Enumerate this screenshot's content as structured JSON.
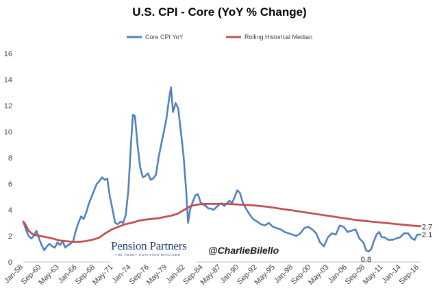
{
  "chart_data": {
    "type": "line",
    "title": "U.S. CPI - Core (YoY % Change)",
    "xlabel": "",
    "ylabel": "",
    "ylim": [
      0,
      16
    ],
    "yticks": [
      0,
      2,
      4,
      6,
      8,
      10,
      12,
      14,
      16
    ],
    "x_range": [
      1958.0,
      2018.5
    ],
    "xtick_labels": [
      "Jan-58",
      "Sep-60",
      "May-63",
      "Jan-66",
      "Sep-68",
      "May-71",
      "Jan-74",
      "Sep-76",
      "May-79",
      "Jan-82",
      "Sep-84",
      "May-87",
      "Jan-90",
      "Sep-92",
      "May-95",
      "Jan-98",
      "Sep-00",
      "May-03",
      "Jan-06",
      "Sep-08",
      "May-11",
      "Jan-14",
      "Sep-16"
    ],
    "legend_position": "top-center",
    "series": [
      {
        "name": "Core CPI YoY",
        "color": "#4f81bd",
        "x": [
          1958.0,
          1958.4,
          1958.8,
          1959.2,
          1959.6,
          1960.0,
          1960.4,
          1960.8,
          1961.2,
          1961.6,
          1962.0,
          1962.4,
          1962.8,
          1963.2,
          1963.6,
          1964.0,
          1964.4,
          1964.8,
          1965.2,
          1965.6,
          1966.0,
          1966.4,
          1966.8,
          1967.2,
          1967.6,
          1968.0,
          1968.4,
          1968.8,
          1969.2,
          1969.6,
          1970.0,
          1970.4,
          1970.8,
          1971.2,
          1971.6,
          1972.0,
          1972.4,
          1972.8,
          1973.2,
          1973.6,
          1974.0,
          1974.4,
          1974.7,
          1975.0,
          1975.4,
          1975.8,
          1976.2,
          1976.6,
          1977.0,
          1977.4,
          1977.8,
          1978.2,
          1978.6,
          1979.0,
          1979.4,
          1979.8,
          1980.2,
          1980.5,
          1980.8,
          1981.2,
          1981.6,
          1982.0,
          1982.4,
          1982.8,
          1983.1,
          1983.4,
          1983.8,
          1984.2,
          1984.6,
          1985.0,
          1985.4,
          1985.8,
          1986.2,
          1986.6,
          1987.0,
          1987.4,
          1987.8,
          1988.2,
          1988.6,
          1989.0,
          1989.4,
          1989.8,
          1990.2,
          1990.6,
          1991.0,
          1991.4,
          1991.8,
          1992.4,
          1993.0,
          1993.6,
          1994.2,
          1994.8,
          1995.4,
          1996.0,
          1996.6,
          1997.2,
          1997.8,
          1998.4,
          1999.0,
          1999.6,
          2000.2,
          2000.8,
          2001.4,
          2002.0,
          2002.6,
          2003.2,
          2003.8,
          2004.4,
          2005.0,
          2005.6,
          2006.2,
          2006.8,
          2007.4,
          2008.0,
          2008.6,
          2009.2,
          2009.8,
          2010.2,
          2010.6,
          2011.0,
          2011.4,
          2011.8,
          2012.2,
          2012.6,
          2013.0,
          2013.6,
          2014.2,
          2014.8,
          2015.4,
          2016.0,
          2016.6,
          2017.2,
          2017.6,
          2018.0,
          2018.5
        ],
        "values": [
          3.1,
          2.5,
          2.0,
          1.8,
          2.0,
          2.4,
          1.8,
          1.3,
          0.9,
          1.2,
          1.4,
          1.2,
          1.1,
          1.5,
          1.3,
          1.6,
          1.1,
          1.3,
          1.4,
          1.6,
          2.4,
          3.0,
          3.5,
          3.3,
          3.8,
          4.5,
          5.0,
          5.5,
          6.0,
          6.2,
          6.5,
          6.3,
          6.4,
          5.0,
          4.0,
          3.0,
          2.9,
          3.1,
          3.0,
          3.6,
          5.5,
          9.0,
          11.3,
          11.2,
          9.0,
          7.3,
          6.5,
          6.6,
          6.8,
          6.3,
          6.4,
          6.7,
          8.0,
          9.0,
          10.0,
          11.0,
          12.5,
          13.4,
          11.5,
          12.2,
          11.8,
          10.0,
          8.2,
          5.5,
          3.0,
          4.0,
          4.6,
          5.1,
          5.2,
          4.6,
          4.4,
          4.3,
          4.1,
          4.1,
          4.0,
          4.2,
          4.4,
          4.5,
          4.3,
          4.5,
          4.7,
          4.5,
          5.0,
          5.5,
          5.3,
          4.6,
          4.2,
          3.7,
          3.3,
          3.1,
          2.9,
          2.8,
          3.0,
          2.7,
          2.6,
          2.5,
          2.3,
          2.2,
          2.1,
          2.0,
          2.2,
          2.6,
          2.7,
          2.5,
          2.2,
          1.5,
          1.2,
          1.9,
          2.2,
          2.1,
          2.8,
          2.7,
          2.3,
          2.4,
          2.5,
          1.8,
          1.5,
          0.9,
          0.8,
          1.0,
          1.6,
          2.1,
          2.3,
          1.9,
          1.9,
          1.7,
          1.7,
          1.8,
          1.9,
          2.2,
          2.2,
          1.8,
          1.7,
          2.1,
          2.1
        ]
      },
      {
        "name": "Rolling Historical Median",
        "color": "#c0504d",
        "x": [
          1958.0,
          1958.3,
          1958.8,
          1959.5,
          1960.5,
          1961.5,
          1962.5,
          1963.5,
          1964.5,
          1965.5,
          1966.5,
          1967.5,
          1968.5,
          1969.5,
          1970.5,
          1971.5,
          1972.5,
          1973.5,
          1974.5,
          1975.5,
          1976.5,
          1977.5,
          1978.5,
          1979.5,
          1980.5,
          1981.5,
          1982.5,
          1983.5,
          1984.5,
          1985.5,
          1987.0,
          1989.0,
          1991.0,
          1993.0,
          1995.0,
          1997.0,
          1999.0,
          2001.0,
          2003.0,
          2005.0,
          2007.0,
          2009.0,
          2011.0,
          2013.0,
          2015.0,
          2017.0,
          2018.5
        ],
        "values": [
          3.1,
          2.9,
          2.4,
          2.1,
          2.0,
          1.9,
          1.8,
          1.65,
          1.6,
          1.55,
          1.55,
          1.6,
          1.7,
          1.85,
          2.2,
          2.5,
          2.7,
          2.9,
          3.0,
          3.15,
          3.25,
          3.3,
          3.35,
          3.45,
          3.55,
          3.7,
          4.0,
          4.3,
          4.4,
          4.45,
          4.45,
          4.45,
          4.4,
          4.35,
          4.25,
          4.1,
          3.95,
          3.8,
          3.65,
          3.5,
          3.35,
          3.2,
          3.1,
          3.0,
          2.9,
          2.8,
          2.75
        ]
      }
    ],
    "annotations": [
      {
        "text": "2.7",
        "x": 2018.5,
        "y": 2.7
      },
      {
        "text": "2.1",
        "x": 2018.5,
        "y": 2.1
      },
      {
        "text": "0.8",
        "x": 2010.2,
        "y": 0.8
      }
    ]
  },
  "branding": {
    "logo_name": "Pension Partners",
    "logo_tagline": "THE ASSET ROTATION MANAGER",
    "handle": "@CharlieBilello"
  }
}
